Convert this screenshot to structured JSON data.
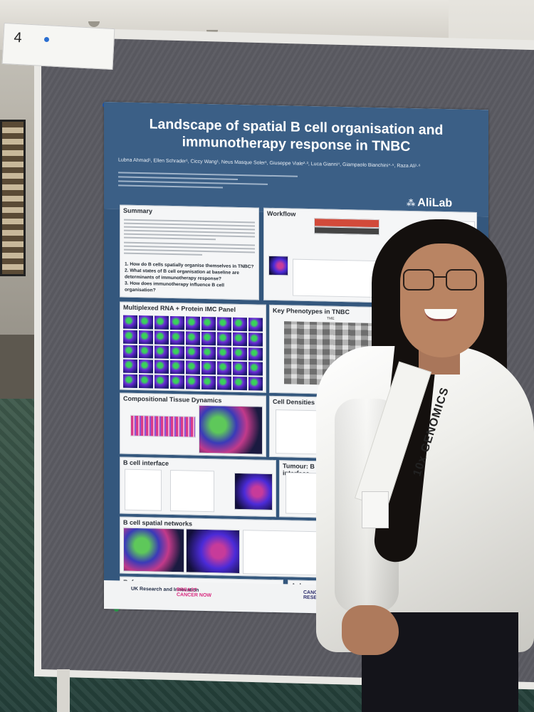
{
  "board": {
    "number": "4"
  },
  "poster": {
    "title": "Landscape of spatial B cell organisation and immunotherapy response in TNBC",
    "authors": "Lubna Ahmad¹, Ellen Schrader¹, Ciccy Wang¹, Neus Masque Soler¹, Giuseppe Viale²·³, Luca Gianni⁴, Giampaolo Bianchini⁴·⁵, Raza Ali¹·⁶",
    "lab": "AliLab",
    "sections": {
      "summary": "Summary",
      "workflow": "Workflow",
      "multiplexed": "Multiplexed RNA + Protein IMC Panel",
      "key_phenotypes": "Key Phenotypes in TNBC",
      "compositional": "Compositional Tissue Dynamics",
      "cell_densities": "Cell Densities",
      "b_cell_interface": "B cell interface",
      "tumour_b_interface": "Tumour: B interface",
      "b_cell_networks": "B cell spatial networks",
      "references": "References",
      "acknowledgements": "Acknowled"
    },
    "questions": [
      "1.  How do B cells spatially organise themselves in TNBC?",
      "2.  What states of B cell organisation at baseline are determinants of immunotherapy response?",
      "3.  How does immunotherapy influence B cell organisation?"
    ],
    "heatmap_label": "TME",
    "footer": {
      "ukri": "UK Research and Innovation",
      "breast_cancer_now": "BREAST CANCER NOW",
      "cancer_research": "CANCER RESEARCH UK"
    }
  },
  "shirt": {
    "lanyard_text": "10x GENOMICS"
  },
  "colors": {
    "poster_header": "#3b5f86",
    "board": "#5f5f66",
    "carpet": "#2e4a40"
  }
}
